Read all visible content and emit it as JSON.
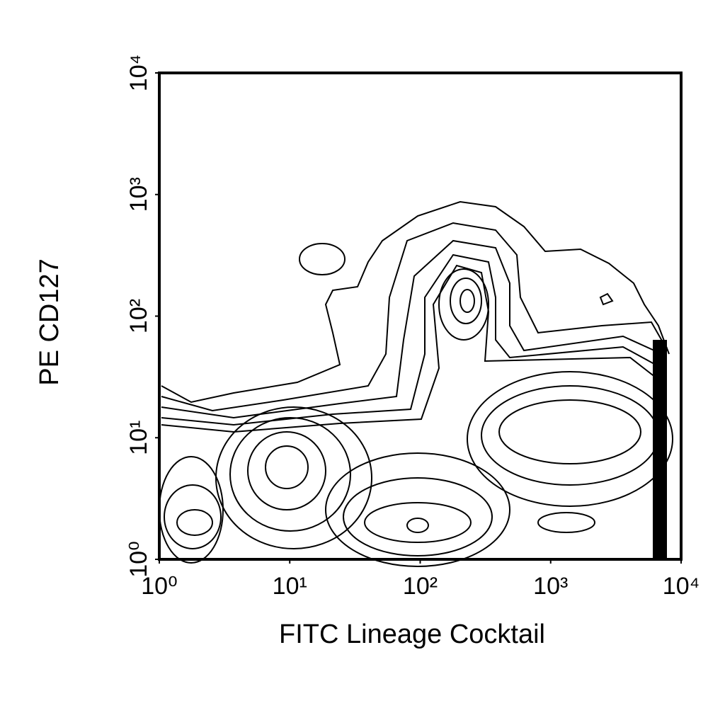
{
  "chart_data": {
    "type": "contour",
    "xlabel": "FITC Lineage Cocktail",
    "ylabel": "PE CD127",
    "xscale": "log",
    "yscale": "log",
    "xlim": [
      1,
      10000
    ],
    "ylim": [
      1,
      10000
    ],
    "xticks": [
      {
        "value": 1,
        "label": "10⁰"
      },
      {
        "value": 10,
        "label": "10¹"
      },
      {
        "value": 100,
        "label": "10²"
      },
      {
        "value": 1000,
        "label": "10³"
      },
      {
        "value": 10000,
        "label": "10⁴"
      }
    ],
    "yticks": [
      {
        "value": 1,
        "label": "10⁰"
      },
      {
        "value": 10,
        "label": "10¹"
      },
      {
        "value": 100,
        "label": "10²"
      },
      {
        "value": 1000,
        "label": "10³"
      },
      {
        "value": 10000,
        "label": "10⁴"
      }
    ],
    "color": "#000000"
  }
}
